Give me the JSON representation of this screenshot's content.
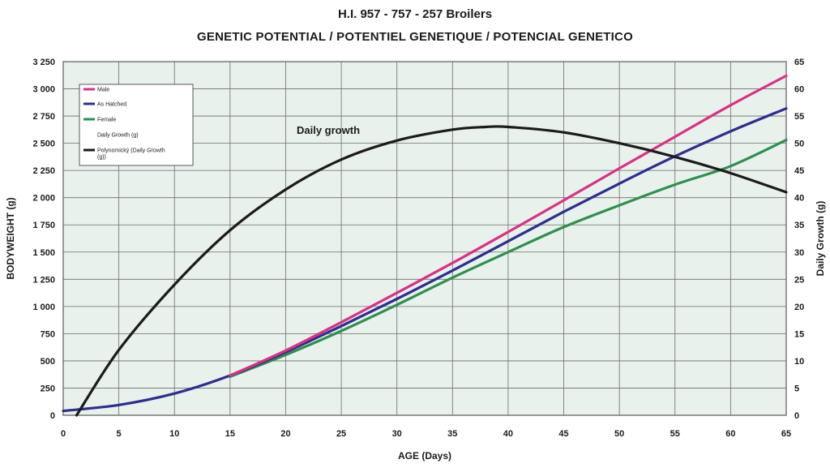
{
  "title": "H.I. 957 - 757 - 257 Broilers",
  "subtitle": "GENETIC POTENTIAL / POTENTIEL GENETIQUE / POTENCIAL GENETICO",
  "chart_data": {
    "type": "line",
    "xlabel": "AGE (Days)",
    "ylabel": "BODYWEIGHT (g)",
    "y2label": "Daily Growth (g)",
    "xlim": [
      0,
      65
    ],
    "ylim": [
      0,
      3250
    ],
    "y2lim": [
      0,
      65
    ],
    "x_ticks": [
      0,
      5,
      10,
      15,
      20,
      25,
      30,
      35,
      40,
      45,
      50,
      55,
      60,
      65
    ],
    "y_ticks": [
      0,
      250,
      500,
      750,
      1000,
      1250,
      1500,
      1750,
      2000,
      2250,
      2500,
      2750,
      3000,
      3250
    ],
    "y_tick_labels": [
      "0",
      "250",
      "500",
      "750",
      "1 000",
      "1 250",
      "1 500",
      "1 750",
      "2 000",
      "2 250",
      "2 500",
      "2 750",
      "3 000",
      "3 250"
    ],
    "y2_ticks": [
      0,
      5,
      10,
      15,
      20,
      25,
      30,
      35,
      40,
      45,
      50,
      55,
      60,
      65
    ],
    "grid": true,
    "legend_position": "top-left",
    "annotation": "Daily growth",
    "series": [
      {
        "name": "Male",
        "axis": "left",
        "color": "#d63384",
        "x": [
          15,
          20,
          25,
          30,
          35,
          40,
          45,
          50,
          55,
          60,
          65
        ],
        "y": [
          365,
          595,
          855,
          1125,
          1400,
          1685,
          1975,
          2270,
          2560,
          2850,
          3120
        ]
      },
      {
        "name": "As Hatched",
        "axis": "left",
        "color": "#2e2e8c",
        "x": [
          0,
          5,
          10,
          15,
          20,
          25,
          30,
          35,
          40,
          45,
          50,
          55,
          60,
          65
        ],
        "y": [
          40,
          95,
          200,
          365,
          580,
          820,
          1070,
          1330,
          1600,
          1870,
          2130,
          2380,
          2610,
          2820
        ]
      },
      {
        "name": "Female",
        "axis": "left",
        "color": "#2f8f4e",
        "x": [
          15,
          20,
          25,
          30,
          35,
          40,
          45,
          50,
          55,
          60,
          65
        ],
        "y": [
          355,
          555,
          775,
          1015,
          1265,
          1500,
          1730,
          1930,
          2120,
          2290,
          2530
        ]
      },
      {
        "name": "Daily Growth (g)",
        "axis": "right",
        "color": "#ffffff",
        "x": [],
        "y": []
      },
      {
        "name": "Polynomický (Daily Growth (g))",
        "axis": "right",
        "color": "#1b1b1b",
        "x": [
          1.2,
          5,
          10,
          15,
          20,
          25,
          30,
          35,
          38,
          40,
          45,
          50,
          55,
          60,
          65
        ],
        "y": [
          0,
          12,
          24,
          34,
          41.5,
          47,
          50.5,
          52.5,
          53,
          53,
          52,
          50,
          47.5,
          44.5,
          41
        ]
      }
    ]
  }
}
